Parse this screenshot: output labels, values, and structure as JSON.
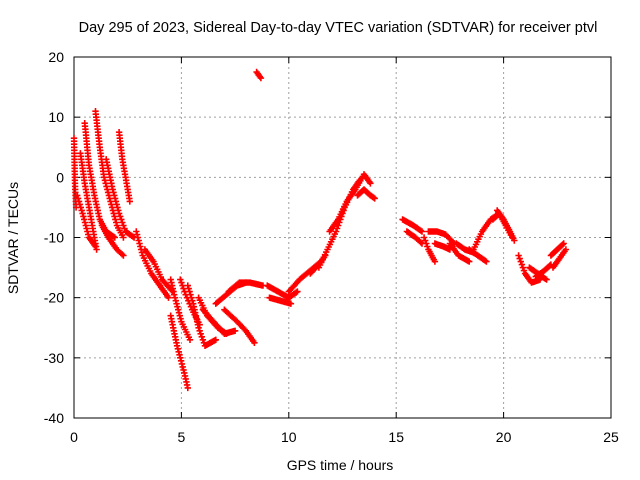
{
  "chart_data": {
    "type": "scatter",
    "title": "Day 295 of 2023, Sidereal Day-to-day VTEC variation (SDTVAR) for receiver ptvl",
    "xlabel": "GPS time / hours",
    "ylabel": "SDTVAR / TECUs",
    "xlim": [
      0,
      25
    ],
    "ylim": [
      -40,
      20
    ],
    "xticks": [
      0,
      5,
      10,
      15,
      20,
      25
    ],
    "yticks": [
      -40,
      -30,
      -20,
      -10,
      0,
      10,
      20
    ],
    "grid": true,
    "marker": "+",
    "color": "#ff0000",
    "series": [
      {
        "name": "s1",
        "points": [
          [
            0,
            6.5
          ],
          [
            0.05,
            -1.5
          ],
          [
            0.1,
            -5
          ]
        ]
      },
      {
        "name": "s2",
        "points": [
          [
            0.3,
            4
          ],
          [
            0.5,
            -1
          ],
          [
            0.7,
            -5
          ],
          [
            0.9,
            -9
          ],
          [
            1.05,
            -12
          ]
        ]
      },
      {
        "name": "s3",
        "points": [
          [
            0.5,
            9
          ],
          [
            0.7,
            2
          ],
          [
            0.95,
            -3
          ],
          [
            1.2,
            -7
          ],
          [
            1.5,
            -9
          ],
          [
            1.9,
            -10
          ]
        ]
      },
      {
        "name": "s4",
        "points": [
          [
            0.15,
            -3
          ],
          [
            0.4,
            -6
          ],
          [
            0.7,
            -10
          ],
          [
            1,
            -11.5
          ]
        ]
      },
      {
        "name": "s5",
        "points": [
          [
            1,
            11
          ],
          [
            1.2,
            5
          ],
          [
            1.4,
            0
          ],
          [
            1.7,
            -4
          ],
          [
            2,
            -8
          ],
          [
            2.3,
            -10
          ]
        ]
      },
      {
        "name": "s6",
        "points": [
          [
            1.5,
            3
          ],
          [
            1.8,
            -2
          ],
          [
            2.1,
            -6
          ],
          [
            2.4,
            -9
          ],
          [
            2.8,
            -10
          ]
        ]
      },
      {
        "name": "s7",
        "points": [
          [
            2.1,
            7.5
          ],
          [
            2.25,
            3
          ],
          [
            2.45,
            -1
          ],
          [
            2.6,
            -4
          ]
        ]
      },
      {
        "name": "s8",
        "points": [
          [
            1.3,
            -8
          ],
          [
            1.6,
            -10
          ],
          [
            2,
            -12
          ],
          [
            2.3,
            -13
          ]
        ]
      },
      {
        "name": "s9",
        "points": [
          [
            2.9,
            -9
          ],
          [
            3.2,
            -13
          ],
          [
            3.6,
            -16
          ],
          [
            4,
            -18
          ],
          [
            4.4,
            -20
          ]
        ]
      },
      {
        "name": "s10",
        "points": [
          [
            3.3,
            -12
          ],
          [
            3.7,
            -14
          ],
          [
            4.1,
            -17
          ],
          [
            4.6,
            -19
          ]
        ]
      },
      {
        "name": "s11",
        "points": [
          [
            4.5,
            -17
          ],
          [
            4.7,
            -20
          ],
          [
            5,
            -24
          ],
          [
            5.4,
            -27
          ]
        ]
      },
      {
        "name": "s12",
        "points": [
          [
            4.95,
            -17
          ],
          [
            5.2,
            -19.5
          ],
          [
            5.5,
            -22
          ],
          [
            5.85,
            -24.5
          ]
        ]
      },
      {
        "name": "s13",
        "points": [
          [
            5.3,
            -18
          ],
          [
            5.55,
            -21
          ],
          [
            5.8,
            -25
          ],
          [
            6.1,
            -28
          ],
          [
            6.6,
            -27
          ]
        ]
      },
      {
        "name": "s14",
        "points": [
          [
            4.5,
            -23
          ],
          [
            4.8,
            -28
          ],
          [
            5.1,
            -32
          ],
          [
            5.3,
            -35
          ]
        ]
      },
      {
        "name": "s15",
        "points": [
          [
            6,
            -22
          ],
          [
            6.5,
            -24
          ],
          [
            7,
            -26
          ],
          [
            7.5,
            -25.5
          ]
        ]
      },
      {
        "name": "s16",
        "points": [
          [
            5.8,
            -20
          ],
          [
            6.2,
            -23
          ],
          [
            6.7,
            -25
          ],
          [
            7.1,
            -26
          ]
        ]
      },
      {
        "name": "s17",
        "points": [
          [
            7,
            -22
          ],
          [
            7.6,
            -24
          ],
          [
            8,
            -25.5
          ],
          [
            8.4,
            -27.5
          ]
        ]
      },
      {
        "name": "s18",
        "points": [
          [
            6.6,
            -21
          ],
          [
            7.1,
            -19.5
          ],
          [
            7.6,
            -18
          ],
          [
            8,
            -17.5
          ]
        ]
      },
      {
        "name": "s19",
        "points": [
          [
            7.2,
            -19
          ],
          [
            7.7,
            -17.5
          ],
          [
            8.2,
            -17.5
          ],
          [
            8.8,
            -18
          ]
        ]
      },
      {
        "name": "s20",
        "points": [
          [
            8.5,
            17.5
          ],
          [
            8.7,
            16.5
          ]
        ]
      },
      {
        "name": "s21",
        "points": [
          [
            9,
            -18
          ],
          [
            9.5,
            -19
          ],
          [
            10,
            -20
          ],
          [
            10.4,
            -19
          ]
        ]
      },
      {
        "name": "s22",
        "points": [
          [
            9.1,
            -20
          ],
          [
            9.6,
            -20.5
          ],
          [
            10.1,
            -21
          ]
        ]
      },
      {
        "name": "s23",
        "points": [
          [
            10,
            -19
          ],
          [
            10.5,
            -17
          ],
          [
            11,
            -15.5
          ],
          [
            11.5,
            -14
          ]
        ]
      },
      {
        "name": "s24",
        "points": [
          [
            11,
            -16
          ],
          [
            11.4,
            -14.5
          ],
          [
            11.7,
            -13
          ]
        ]
      },
      {
        "name": "s25",
        "points": [
          [
            11.4,
            -15
          ],
          [
            11.8,
            -12
          ],
          [
            12.2,
            -9
          ],
          [
            12.6,
            -5
          ],
          [
            13,
            -2
          ],
          [
            13.3,
            -0.5
          ]
        ]
      },
      {
        "name": "s26",
        "points": [
          [
            11.9,
            -9
          ],
          [
            12.3,
            -7
          ],
          [
            12.7,
            -4
          ],
          [
            13.1,
            -2
          ],
          [
            13.5,
            0.5
          ],
          [
            13.8,
            -1
          ]
        ]
      },
      {
        "name": "s27",
        "points": [
          [
            13.2,
            -3
          ],
          [
            13.5,
            -2
          ],
          [
            13.8,
            -3
          ],
          [
            14,
            -3.5
          ]
        ]
      },
      {
        "name": "s28",
        "points": [
          [
            15.3,
            -7
          ],
          [
            15.8,
            -8
          ],
          [
            16.2,
            -9
          ]
        ]
      },
      {
        "name": "s29",
        "points": [
          [
            15.5,
            -9
          ],
          [
            15.9,
            -10
          ],
          [
            16.2,
            -11
          ]
        ]
      },
      {
        "name": "s30",
        "points": [
          [
            16.5,
            -9
          ],
          [
            16.9,
            -9
          ],
          [
            17.3,
            -9.5
          ],
          [
            17.7,
            -11
          ]
        ]
      },
      {
        "name": "s31",
        "points": [
          [
            16.3,
            -10
          ],
          [
            16.5,
            -12
          ],
          [
            16.8,
            -14
          ]
        ]
      },
      {
        "name": "s32",
        "points": [
          [
            16.8,
            -11
          ],
          [
            17.2,
            -11.5
          ],
          [
            17.5,
            -12
          ]
        ]
      },
      {
        "name": "s33",
        "points": [
          [
            17.8,
            -11
          ],
          [
            18.2,
            -12
          ],
          [
            18.6,
            -12.5
          ]
        ]
      },
      {
        "name": "s34",
        "points": [
          [
            17.5,
            -11
          ],
          [
            17.9,
            -13
          ],
          [
            18.4,
            -14
          ]
        ]
      },
      {
        "name": "s35",
        "points": [
          [
            18.6,
            -12
          ],
          [
            19,
            -9
          ],
          [
            19.4,
            -7
          ],
          [
            19.8,
            -6
          ]
        ]
      },
      {
        "name": "s36",
        "points": [
          [
            19.5,
            -7
          ],
          [
            19.8,
            -6
          ],
          [
            20.1,
            -8
          ],
          [
            20.4,
            -10
          ]
        ]
      },
      {
        "name": "s37",
        "points": [
          [
            19.7,
            -5.5
          ],
          [
            20,
            -7
          ],
          [
            20.3,
            -9
          ],
          [
            20.5,
            -10.5
          ]
        ]
      },
      {
        "name": "s38",
        "points": [
          [
            18.4,
            -12
          ],
          [
            18.8,
            -13
          ],
          [
            19.2,
            -14
          ]
        ]
      },
      {
        "name": "s39",
        "points": [
          [
            20.7,
            -13
          ],
          [
            21,
            -16
          ],
          [
            21.3,
            -17.5
          ],
          [
            21.7,
            -17
          ]
        ]
      },
      {
        "name": "s40",
        "points": [
          [
            21.2,
            -15
          ],
          [
            21.6,
            -16
          ],
          [
            22,
            -17
          ]
        ]
      },
      {
        "name": "s41",
        "points": [
          [
            21.5,
            -16.5
          ],
          [
            21.9,
            -15.5
          ],
          [
            22.2,
            -14.5
          ]
        ]
      },
      {
        "name": "s42",
        "points": [
          [
            22.2,
            -13
          ],
          [
            22.5,
            -12
          ],
          [
            22.8,
            -11
          ]
        ]
      },
      {
        "name": "s43",
        "points": [
          [
            22.3,
            -15
          ],
          [
            22.6,
            -13.5
          ],
          [
            22.9,
            -12
          ]
        ]
      }
    ]
  }
}
